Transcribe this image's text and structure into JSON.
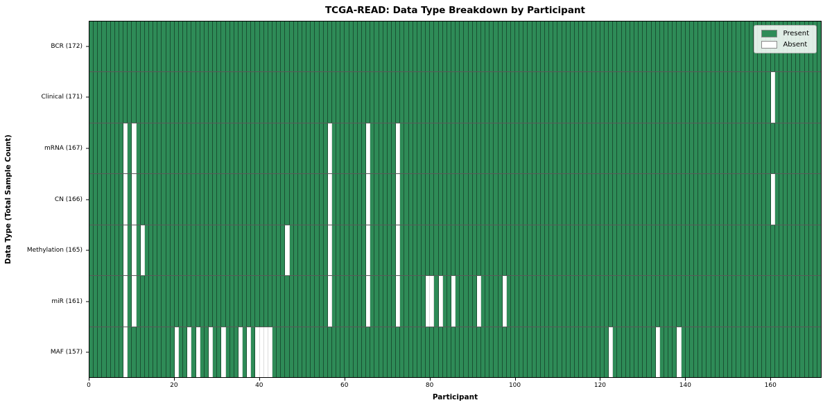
{
  "chart_data": {
    "type": "heatmap",
    "title": "TCGA-READ: Data Type Breakdown by Participant",
    "xlabel": "Participant",
    "ylabel": "Data Type (Total Sample Count)",
    "n_participants": 172,
    "x_ticks": [
      0,
      20,
      40,
      60,
      80,
      100,
      120,
      140,
      160
    ],
    "xlim": [
      0,
      172
    ],
    "grid": "cell-edges",
    "legend_position": "upper-right",
    "rows": [
      {
        "label": "BCR (172)",
        "data_type": "BCR",
        "present_count": 172,
        "absent_participants": []
      },
      {
        "label": "Clinical (171)",
        "data_type": "Clinical",
        "present_count": 171,
        "absent_participants": [
          160
        ]
      },
      {
        "label": "mRNA (167)",
        "data_type": "mRNA",
        "present_count": 167,
        "absent_participants": [
          8,
          10,
          56,
          65,
          72
        ]
      },
      {
        "label": "CN (166)",
        "data_type": "CN",
        "present_count": 166,
        "absent_participants": [
          8,
          10,
          56,
          65,
          72,
          160
        ]
      },
      {
        "label": "Methylation (165)",
        "data_type": "Methylation",
        "present_count": 165,
        "absent_participants": [
          8,
          10,
          12,
          46,
          56,
          65,
          72
        ]
      },
      {
        "label": "miR (161)",
        "data_type": "miR",
        "present_count": 161,
        "absent_participants": [
          8,
          10,
          56,
          65,
          72,
          79,
          80,
          82,
          85,
          91,
          97
        ]
      },
      {
        "label": "MAF (157)",
        "data_type": "MAF",
        "present_count": 157,
        "absent_participants": [
          8,
          20,
          23,
          25,
          28,
          31,
          35,
          37,
          39,
          40,
          41,
          42,
          122,
          133,
          138
        ]
      }
    ],
    "legend": [
      {
        "label": "Present",
        "color": "#2e8b57"
      },
      {
        "label": "Absent",
        "color": "#ffffff"
      }
    ],
    "colors": {
      "present": "#2e8b57",
      "absent": "#ffffff",
      "cell_edge": "rgba(0,0,0,0.42)",
      "spine": "#000000"
    }
  }
}
